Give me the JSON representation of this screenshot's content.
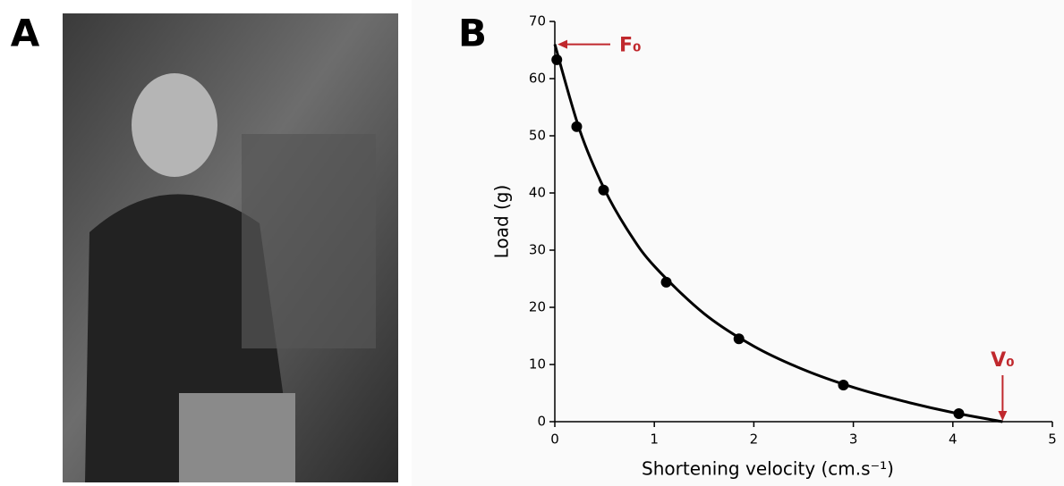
{
  "panel_labels": [
    "A",
    "B"
  ],
  "chart_data": {
    "type": "scatter",
    "xlabel": "Shortening velocity (cm.s⁻¹)",
    "ylabel": "Load (g)",
    "xlim": [
      0,
      5
    ],
    "xticks": [
      0,
      1,
      2,
      3,
      4,
      5
    ],
    "ylim": [
      0,
      70
    ],
    "yticks": [
      0,
      10,
      20,
      30,
      40,
      50,
      60,
      70
    ],
    "series": [
      {
        "style": "markers",
        "color": "#000000",
        "x": [
          0.02,
          0.22,
          0.49,
          1.12,
          1.85,
          2.9,
          4.06
        ],
        "values": [
          63.3,
          51.6,
          40.5,
          24.4,
          14.5,
          6.4,
          1.4
        ]
      },
      {
        "style": "line",
        "color": "#000000",
        "x": [
          0,
          0.25,
          0.5,
          0.75,
          1,
          1.5,
          2,
          2.5,
          3,
          3.5,
          4,
          4.5
        ],
        "values": [
          66.0,
          51.0,
          40.6,
          33.0,
          27.2,
          18.9,
          13.2,
          9.1,
          6.0,
          3.6,
          1.6,
          0
        ]
      }
    ],
    "annotations": [
      {
        "text": "F₀",
        "x": 0,
        "y": 66,
        "color": "#c0282d"
      },
      {
        "text": "V₀",
        "x": 4.5,
        "y": 0,
        "color": "#c0282d"
      }
    ]
  }
}
